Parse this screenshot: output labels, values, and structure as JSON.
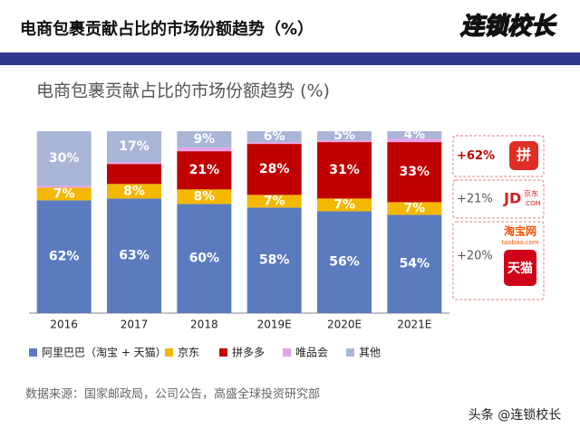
{
  "header": {
    "title": "电商包裹贡献占比的市场份额趋势（%）",
    "logo": "连锁校长"
  },
  "chart_data": {
    "type": "stacked_bar",
    "title": "电商包裹贡献占比的市场份额趋势 (%)",
    "categories": [
      "2016",
      "2017",
      "2018",
      "2019E",
      "2020E",
      "2021E"
    ],
    "ylim": [
      0,
      100
    ],
    "series": [
      {
        "name": "阿里巴巴（淘宝 + 天猫）",
        "color": "#5b7bbf",
        "values": [
          62,
          63,
          60,
          58,
          56,
          54
        ],
        "value_labels": [
          "62%",
          "63%",
          "60%",
          "58%",
          "56%",
          "54%"
        ]
      },
      {
        "name": "京东",
        "color": "#f5b800",
        "values": [
          7,
          8,
          8,
          7,
          7,
          7
        ],
        "value_labels": [
          "7%",
          "8%",
          "8%",
          "7%",
          "7%",
          "7%"
        ]
      },
      {
        "name": "拼多多",
        "color": "#c00000",
        "values": [
          0,
          11,
          21,
          28,
          31,
          33
        ],
        "value_labels": [
          null,
          null,
          "21%",
          "28%",
          "31%",
          "33%"
        ]
      },
      {
        "name": "唯品会",
        "color": "#e6a3e6",
        "values": [
          1,
          1,
          2,
          1,
          1,
          2
        ],
        "value_labels": [
          null,
          null,
          null,
          null,
          null,
          null
        ]
      },
      {
        "name": "其他",
        "color": "#a9b6d8",
        "values": [
          30,
          17,
          9,
          6,
          5,
          4
        ],
        "value_labels": [
          "30%",
          "17%",
          "9%",
          "6%",
          "5%",
          "4%"
        ]
      }
    ],
    "source": "数据来源：国家邮政局，公司公告，高盛全球投资研究部"
  },
  "panel": [
    {
      "change": "+62%",
      "logo": [
        "拼"
      ]
    },
    {
      "change": "+21%",
      "logo": [
        "JD",
        "京东",
        ".COM"
      ]
    },
    {
      "change": "+20%",
      "logo": [
        "淘宝网",
        "taobao.com",
        "天猫"
      ]
    }
  ],
  "watermark": "头条 @连锁校长"
}
